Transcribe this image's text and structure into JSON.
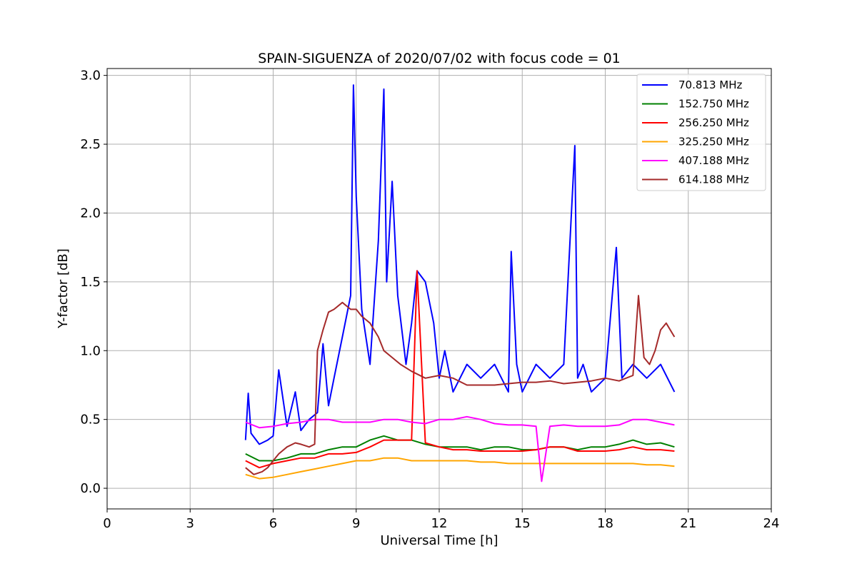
{
  "chart_data": {
    "type": "line",
    "title": "SPAIN-SIGUENZA of 2020/07/02 with focus code = 01",
    "xlabel": "Universal Time [h]",
    "ylabel": "Y-factor [dB]",
    "xlim": [
      0,
      24
    ],
    "ylim": [
      -0.15,
      3.05
    ],
    "xticks": [
      0,
      3,
      6,
      9,
      12,
      15,
      18,
      21,
      24
    ],
    "xtick_labels": [
      "0",
      "3",
      "6",
      "9",
      "12",
      "15",
      "18",
      "21",
      "24"
    ],
    "yticks": [
      0.0,
      0.5,
      1.0,
      1.5,
      2.0,
      2.5,
      3.0
    ],
    "ytick_labels": [
      "0.0",
      "0.5",
      "1.0",
      "1.5",
      "2.0",
      "2.5",
      "3.0"
    ],
    "grid": true,
    "legend_position": "top-right",
    "series": [
      {
        "name": " 70.813 MHz",
        "color": "#0000ff",
        "x": [
          5.0,
          5.1,
          5.2,
          5.5,
          5.8,
          6.0,
          6.2,
          6.5,
          6.8,
          7.0,
          7.3,
          7.6,
          7.8,
          8.0,
          8.2,
          8.5,
          8.8,
          8.9,
          9.0,
          9.2,
          9.5,
          9.8,
          10.0,
          10.1,
          10.3,
          10.5,
          10.8,
          11.0,
          11.2,
          11.5,
          11.8,
          12.0,
          12.2,
          12.5,
          13.0,
          13.5,
          14.0,
          14.5,
          14.6,
          14.8,
          15.0,
          15.5,
          16.0,
          16.5,
          16.9,
          17.0,
          17.2,
          17.5,
          18.0,
          18.4,
          18.6,
          19.0,
          19.5,
          20.0,
          20.5
        ],
        "y": [
          0.35,
          0.69,
          0.4,
          0.32,
          0.35,
          0.38,
          0.86,
          0.45,
          0.7,
          0.42,
          0.5,
          0.55,
          1.05,
          0.6,
          0.8,
          1.1,
          1.4,
          2.93,
          2.12,
          1.3,
          0.9,
          1.8,
          2.9,
          1.5,
          2.23,
          1.4,
          0.9,
          1.2,
          1.58,
          1.5,
          1.2,
          0.8,
          1.0,
          0.7,
          0.9,
          0.8,
          0.9,
          0.7,
          1.72,
          0.9,
          0.7,
          0.9,
          0.8,
          0.9,
          2.49,
          0.8,
          0.9,
          0.7,
          0.8,
          1.75,
          0.8,
          0.9,
          0.8,
          0.9,
          0.7
        ]
      },
      {
        "name": "152.750 MHz",
        "color": "#008000",
        "x": [
          5.0,
          5.5,
          6.0,
          6.5,
          7.0,
          7.5,
          8.0,
          8.5,
          9.0,
          9.5,
          10.0,
          10.5,
          11.0,
          11.5,
          12.0,
          12.5,
          13.0,
          13.5,
          14.0,
          14.5,
          15.0,
          15.5,
          16.0,
          16.5,
          17.0,
          17.5,
          18.0,
          18.5,
          19.0,
          19.5,
          20.0,
          20.5
        ],
        "y": [
          0.25,
          0.2,
          0.2,
          0.22,
          0.25,
          0.25,
          0.28,
          0.3,
          0.3,
          0.35,
          0.38,
          0.35,
          0.35,
          0.32,
          0.3,
          0.3,
          0.3,
          0.28,
          0.3,
          0.3,
          0.28,
          0.28,
          0.3,
          0.3,
          0.28,
          0.3,
          0.3,
          0.32,
          0.35,
          0.32,
          0.33,
          0.3
        ]
      },
      {
        "name": "256.250 MHz",
        "color": "#ff0000",
        "x": [
          5.0,
          5.5,
          6.0,
          6.5,
          7.0,
          7.5,
          8.0,
          8.5,
          9.0,
          9.5,
          10.0,
          10.5,
          11.0,
          11.2,
          11.5,
          12.0,
          12.5,
          13.0,
          13.5,
          14.0,
          14.5,
          15.0,
          15.5,
          16.0,
          16.5,
          17.0,
          17.5,
          18.0,
          18.5,
          19.0,
          19.5,
          20.0,
          20.5
        ],
        "y": [
          0.2,
          0.15,
          0.18,
          0.2,
          0.22,
          0.22,
          0.25,
          0.25,
          0.26,
          0.3,
          0.35,
          0.35,
          0.35,
          1.58,
          0.33,
          0.3,
          0.28,
          0.28,
          0.27,
          0.27,
          0.27,
          0.27,
          0.28,
          0.3,
          0.3,
          0.27,
          0.27,
          0.27,
          0.28,
          0.3,
          0.28,
          0.28,
          0.27
        ]
      },
      {
        "name": "325.250 MHz",
        "color": "#ffa500",
        "x": [
          5.0,
          5.5,
          6.0,
          6.5,
          7.0,
          7.5,
          8.0,
          8.5,
          9.0,
          9.5,
          10.0,
          10.5,
          11.0,
          11.5,
          12.0,
          12.5,
          13.0,
          13.5,
          14.0,
          14.5,
          15.0,
          15.5,
          16.0,
          16.5,
          17.0,
          17.5,
          18.0,
          18.5,
          19.0,
          19.5,
          20.0,
          20.5
        ],
        "y": [
          0.1,
          0.07,
          0.08,
          0.1,
          0.12,
          0.14,
          0.16,
          0.18,
          0.2,
          0.2,
          0.22,
          0.22,
          0.2,
          0.2,
          0.2,
          0.2,
          0.2,
          0.19,
          0.19,
          0.18,
          0.18,
          0.18,
          0.18,
          0.18,
          0.18,
          0.18,
          0.18,
          0.18,
          0.18,
          0.17,
          0.17,
          0.16
        ]
      },
      {
        "name": "407.188 MHz",
        "color": "#ff00ff",
        "x": [
          5.0,
          5.5,
          6.0,
          6.5,
          7.0,
          7.5,
          8.0,
          8.5,
          9.0,
          9.5,
          10.0,
          10.5,
          11.0,
          11.5,
          12.0,
          12.5,
          13.0,
          13.5,
          14.0,
          14.5,
          15.0,
          15.5,
          15.7,
          16.0,
          16.5,
          17.0,
          17.5,
          18.0,
          18.5,
          19.0,
          19.5,
          20.0,
          20.5
        ],
        "y": [
          0.48,
          0.44,
          0.45,
          0.47,
          0.48,
          0.5,
          0.5,
          0.48,
          0.48,
          0.48,
          0.5,
          0.5,
          0.48,
          0.47,
          0.5,
          0.5,
          0.52,
          0.5,
          0.47,
          0.46,
          0.46,
          0.45,
          0.05,
          0.45,
          0.46,
          0.45,
          0.45,
          0.45,
          0.46,
          0.5,
          0.5,
          0.48,
          0.46
        ]
      },
      {
        "name": "614.188 MHz",
        "color": "#a52a2a",
        "x": [
          5.0,
          5.3,
          5.6,
          5.8,
          6.0,
          6.2,
          6.5,
          6.8,
          7.0,
          7.3,
          7.5,
          7.6,
          7.8,
          8.0,
          8.2,
          8.5,
          8.8,
          9.0,
          9.2,
          9.5,
          9.8,
          10.0,
          10.3,
          10.6,
          11.0,
          11.5,
          12.0,
          12.5,
          13.0,
          13.5,
          14.0,
          14.5,
          15.0,
          15.5,
          16.0,
          16.5,
          17.0,
          17.5,
          18.0,
          18.5,
          19.0,
          19.2,
          19.4,
          19.6,
          19.8,
          20.0,
          20.2,
          20.5
        ],
        "y": [
          0.15,
          0.1,
          0.12,
          0.15,
          0.2,
          0.25,
          0.3,
          0.33,
          0.32,
          0.3,
          0.32,
          1.0,
          1.15,
          1.28,
          1.3,
          1.35,
          1.3,
          1.3,
          1.25,
          1.2,
          1.1,
          1.0,
          0.95,
          0.9,
          0.85,
          0.8,
          0.82,
          0.8,
          0.75,
          0.75,
          0.75,
          0.76,
          0.77,
          0.77,
          0.78,
          0.76,
          0.77,
          0.78,
          0.8,
          0.78,
          0.82,
          1.4,
          0.95,
          0.9,
          1.0,
          1.15,
          1.2,
          1.1
        ]
      }
    ]
  }
}
